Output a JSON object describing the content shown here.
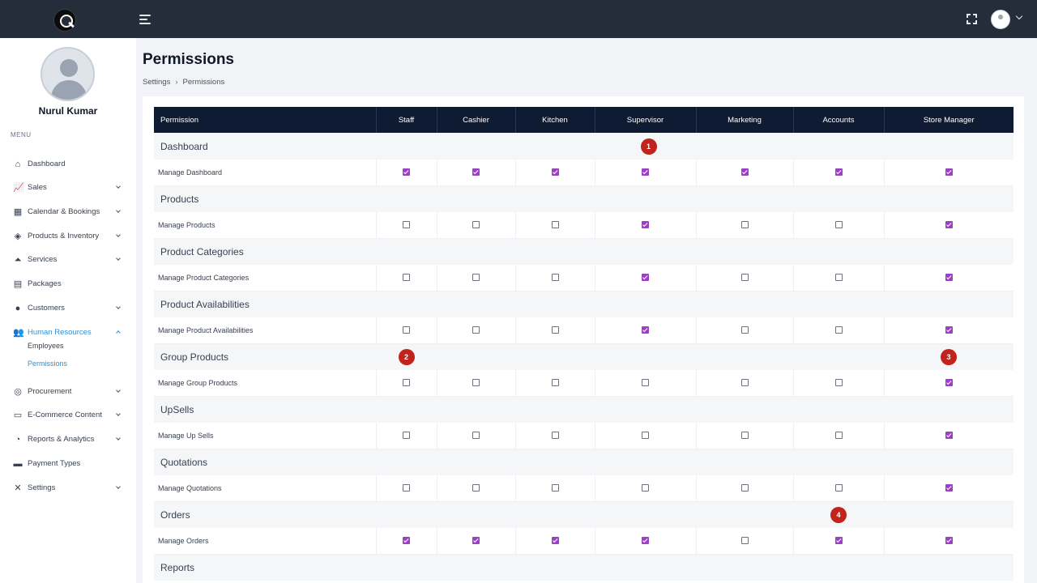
{
  "header": {
    "logo": "Q"
  },
  "profile": {
    "name": "Nurul Kumar"
  },
  "menu_label": "MENU",
  "nav": [
    {
      "id": "dashboard",
      "label": "Dashboard",
      "icon": "home-icon",
      "glyph": "⌂",
      "chevron": false
    },
    {
      "id": "sales",
      "label": "Sales",
      "icon": "chart-icon",
      "glyph": "📈",
      "chevron": true
    },
    {
      "id": "calendar",
      "label": "Calendar & Bookings",
      "icon": "calendar-icon",
      "glyph": "▦",
      "chevron": true
    },
    {
      "id": "products",
      "label": "Products & Inventory",
      "icon": "box-icon",
      "glyph": "◈",
      "chevron": true
    },
    {
      "id": "services",
      "label": "Services",
      "icon": "service-bell-icon",
      "glyph": "⏶",
      "chevron": true
    },
    {
      "id": "packages",
      "label": "Packages",
      "icon": "package-icon",
      "glyph": "▤",
      "chevron": false
    },
    {
      "id": "customers",
      "label": "Customers",
      "icon": "user-circle-icon",
      "glyph": "●",
      "chevron": true
    },
    {
      "id": "hr",
      "label": "Human Resources",
      "icon": "users-icon",
      "glyph": "👥",
      "chevron": true,
      "active": true
    },
    {
      "id": "procurement",
      "label": "Procurement",
      "icon": "coins-icon",
      "glyph": "◎",
      "chevron": true
    },
    {
      "id": "ecommerce",
      "label": "E-Commerce Content",
      "icon": "laptop-icon",
      "glyph": "▭",
      "chevron": true
    },
    {
      "id": "reports",
      "label": "Reports & Analytics",
      "icon": "pie-chart-icon",
      "glyph": "◔",
      "chevron": true
    },
    {
      "id": "payment",
      "label": "Payment Types",
      "icon": "credit-card-icon",
      "glyph": "▬",
      "chevron": false
    },
    {
      "id": "settings",
      "label": "Settings",
      "icon": "tools-icon",
      "glyph": "✕",
      "chevron": true
    }
  ],
  "subnav": [
    {
      "label": "Employees",
      "active": false
    },
    {
      "label": "Permissions",
      "active": true
    }
  ],
  "page": {
    "title": "Permissions",
    "breadcrumb": [
      "Settings",
      "Permissions"
    ]
  },
  "table": {
    "columns": [
      "Permission",
      "Staff",
      "Cashier",
      "Kitchen",
      "Supervisor",
      "Marketing",
      "Accounts",
      "Store Manager"
    ],
    "groups": [
      {
        "name": "Dashboard",
        "perm": "Manage Dashboard",
        "checks": [
          true,
          true,
          true,
          true,
          true,
          true,
          true
        ]
      },
      {
        "name": "Products",
        "perm": "Manage Products",
        "checks": [
          false,
          false,
          false,
          true,
          false,
          false,
          true
        ]
      },
      {
        "name": "Product Categories",
        "perm": "Manage Product Categories",
        "checks": [
          false,
          false,
          false,
          true,
          false,
          false,
          true
        ]
      },
      {
        "name": "Product Availabilities",
        "perm": "Manage Product Availabilities",
        "checks": [
          false,
          false,
          false,
          true,
          false,
          false,
          true
        ]
      },
      {
        "name": "Group Products",
        "perm": "Manage Group Products",
        "checks": [
          false,
          false,
          false,
          false,
          false,
          false,
          true
        ]
      },
      {
        "name": "UpSells",
        "perm": "Manage Up Sells",
        "checks": [
          false,
          false,
          false,
          false,
          false,
          false,
          true
        ]
      },
      {
        "name": "Quotations",
        "perm": "Manage Quotations",
        "checks": [
          false,
          false,
          false,
          false,
          false,
          false,
          true
        ]
      },
      {
        "name": "Orders",
        "perm": "Manage Orders",
        "checks": [
          true,
          true,
          true,
          true,
          false,
          true,
          true
        ]
      },
      {
        "name": "Reports"
      }
    ]
  },
  "markers": [
    {
      "label": "1",
      "group": 0,
      "col": 4
    },
    {
      "label": "2",
      "group": 4,
      "col": 1
    },
    {
      "label": "3",
      "group": 4,
      "col": 7
    },
    {
      "label": "4",
      "group": 7,
      "col": 6
    }
  ]
}
